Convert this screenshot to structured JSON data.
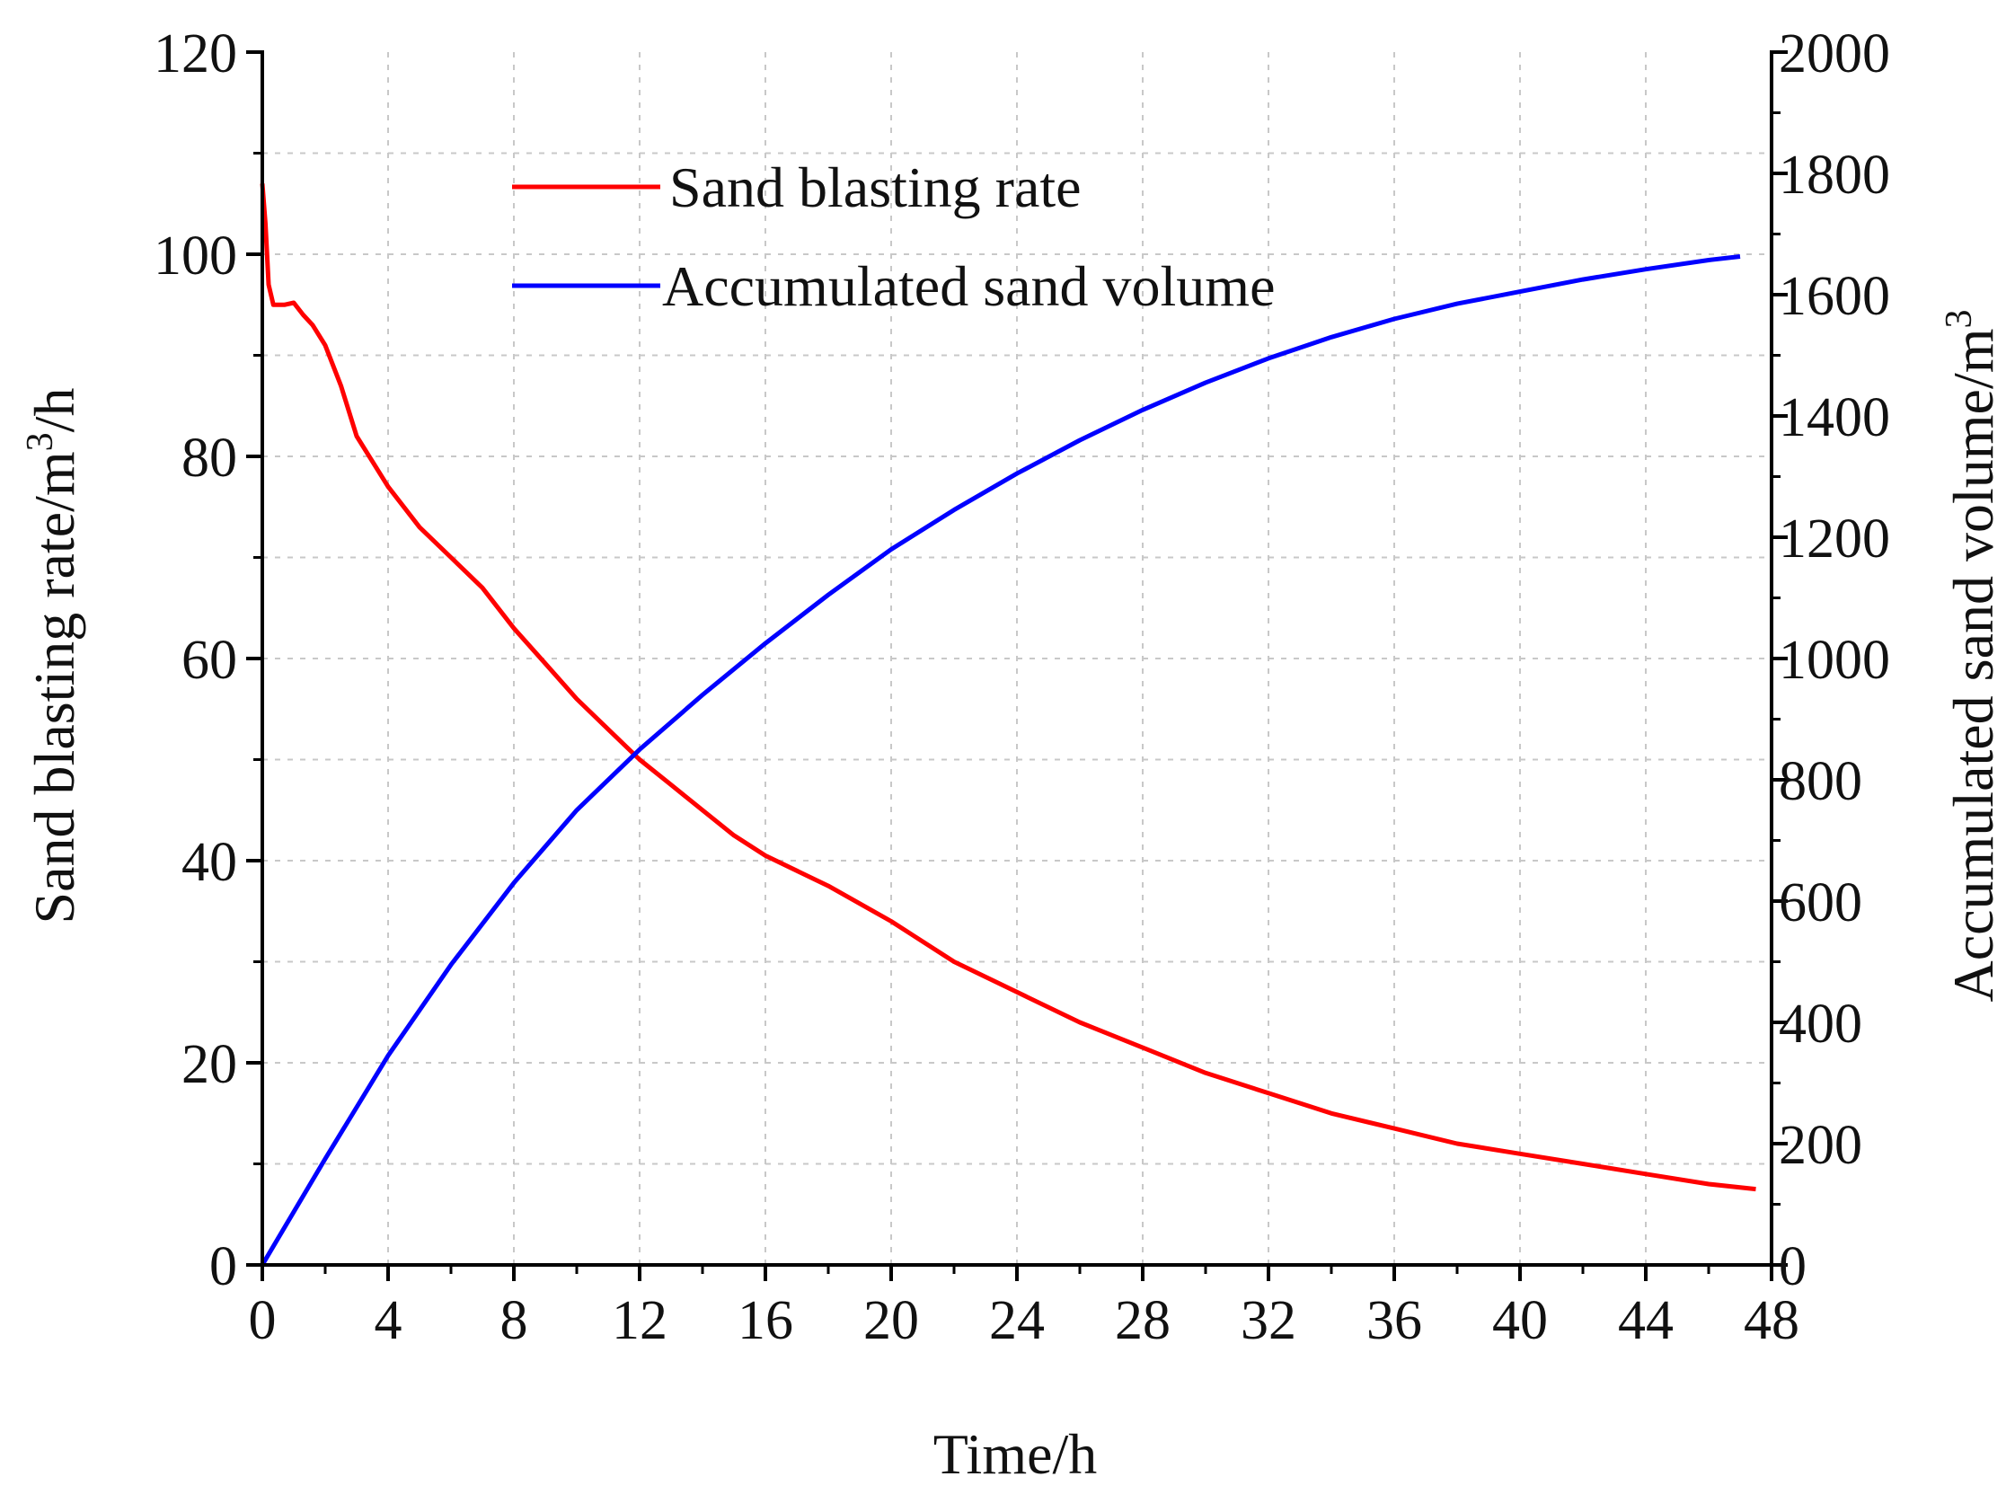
{
  "chart_data": {
    "type": "line",
    "title": "",
    "xlabel": "Time/h",
    "ylabel": "Sand blasting rate/m",
    "ylabel_sup": "3",
    "ylabel_suffix": "/h",
    "y2label": "Accumulated sand volume/m",
    "y2label_sup": "3",
    "xlim": [
      0,
      48
    ],
    "ylim": [
      0,
      120
    ],
    "y2lim": [
      0,
      2000
    ],
    "x_ticks": [
      "0",
      "4",
      "8",
      "12",
      "16",
      "20",
      "24",
      "28",
      "32",
      "36",
      "40",
      "44",
      "48"
    ],
    "y_ticks": [
      "0",
      "20",
      "40",
      "60",
      "80",
      "100",
      "120"
    ],
    "y2_ticks": [
      "0",
      "200",
      "400",
      "600",
      "800",
      "1000",
      "1200",
      "1400",
      "1600",
      "1800",
      "2000"
    ],
    "grid": true,
    "legend_position": "top-center",
    "series": [
      {
        "name": "Sand blasting rate",
        "axis": "left",
        "color": "#ff0000",
        "x": [
          0,
          0.1,
          0.2,
          0.35,
          0.5,
          0.7,
          1.0,
          1.3,
          1.6,
          2.0,
          2.5,
          3.0,
          3.5,
          4.0,
          5.0,
          6.0,
          7.0,
          8.0,
          9.0,
          10.0,
          11.0,
          12.0,
          13.0,
          14.0,
          15.0,
          16.0,
          18.0,
          20.0,
          22.0,
          24.0,
          26.0,
          28.0,
          30.0,
          32.0,
          34.0,
          36.0,
          38.0,
          40.0,
          42.0,
          44.0,
          46.0,
          47.5
        ],
        "y": [
          107,
          103,
          97,
          95,
          95,
          95,
          95.2,
          94,
          93,
          91,
          87,
          82,
          79.5,
          77,
          73,
          70,
          67,
          63,
          59.5,
          56,
          53,
          50,
          47.5,
          45,
          42.5,
          40.5,
          37.5,
          34,
          30,
          27,
          24,
          21.5,
          19,
          17,
          15,
          13.5,
          12,
          11,
          10,
          9,
          8,
          7.5
        ]
      },
      {
        "name": "Accumulated sand volume",
        "axis": "right",
        "color": "#0000ff",
        "x": [
          0,
          2,
          4,
          6,
          8,
          10,
          12,
          14,
          16,
          18,
          20,
          22,
          24,
          26,
          28,
          30,
          32,
          34,
          36,
          38,
          40,
          42,
          44,
          46,
          47
        ],
        "y": [
          0,
          175,
          345,
          495,
          630,
          750,
          850,
          940,
          1025,
          1105,
          1180,
          1245,
          1305,
          1360,
          1410,
          1455,
          1495,
          1530,
          1560,
          1585,
          1605,
          1625,
          1642,
          1657,
          1663
        ]
      }
    ]
  }
}
